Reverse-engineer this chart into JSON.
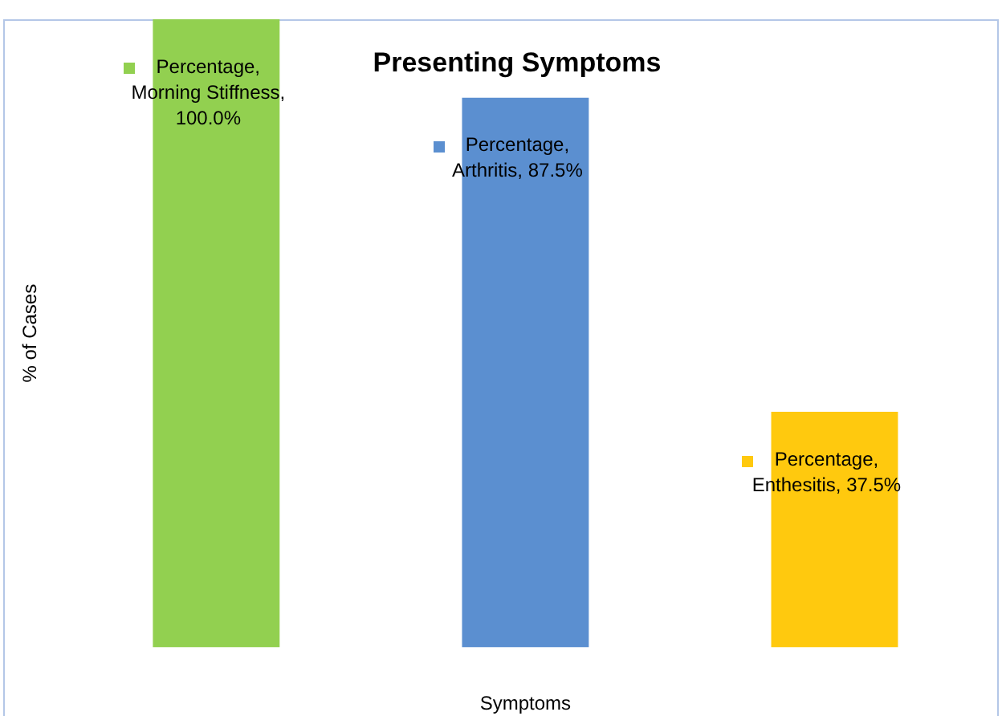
{
  "chart_data": {
    "type": "bar",
    "title": "Presenting Symptoms",
    "xlabel": "Symptoms",
    "ylabel": "% of Cases",
    "categories": [
      null,
      null,
      null
    ],
    "values": [
      100,
      87.5,
      37.5
    ],
    "colors": [
      "#92d050",
      "#5b8fd0",
      "#ffc90e"
    ],
    "value_labels": [
      "Percentage,\nMorning Stiffness,\n100.0%",
      "Percentage,\nArthritis, 87.5%",
      "Percentage,\nEnthesitis, 37.5%"
    ],
    "legend": false,
    "grid": false
  }
}
